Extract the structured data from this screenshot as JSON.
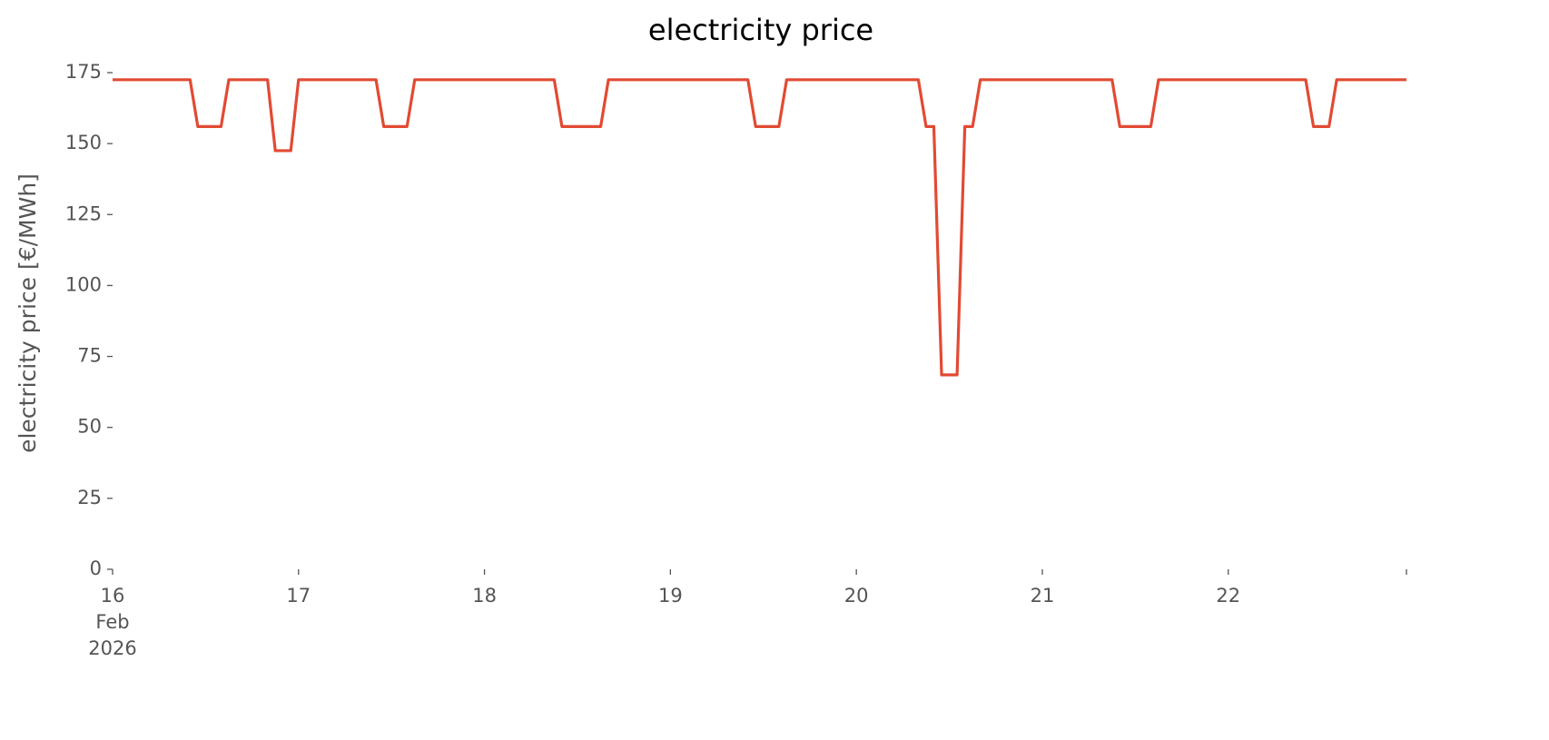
{
  "chart_data": {
    "type": "line",
    "title": "electricity price",
    "y_label": "electricity price [€/MWh]",
    "x": [
      "2026-02-16T00:00",
      "2026-02-16T10:00",
      "2026-02-16T11:00",
      "2026-02-16T14:00",
      "2026-02-16T15:00",
      "2026-02-16T20:00",
      "2026-02-16T21:00",
      "2026-02-16T23:00",
      "2026-02-17T00:00",
      "2026-02-17T10:00",
      "2026-02-17T11:00",
      "2026-02-17T14:00",
      "2026-02-17T15:00",
      "2026-02-18T09:00",
      "2026-02-18T10:00",
      "2026-02-18T15:00",
      "2026-02-18T16:00",
      "2026-02-19T10:00",
      "2026-02-19T11:00",
      "2026-02-19T14:00",
      "2026-02-19T15:00",
      "2026-02-20T08:00",
      "2026-02-20T09:00",
      "2026-02-20T10:00",
      "2026-02-20T11:00",
      "2026-02-20T13:00",
      "2026-02-20T14:00",
      "2026-02-20T15:00",
      "2026-02-20T16:00",
      "2026-02-21T09:00",
      "2026-02-21T10:00",
      "2026-02-21T14:00",
      "2026-02-21T15:00",
      "2026-02-22T10:00",
      "2026-02-22T11:00",
      "2026-02-22T13:00",
      "2026-02-22T14:00",
      "2026-02-22T23:00"
    ],
    "series": [
      {
        "name": "electricity price",
        "color": "#E24A33",
        "values": [
          172.5,
          172.5,
          156,
          156,
          172.5,
          172.5,
          147.5,
          147.5,
          172.5,
          172.5,
          156,
          156,
          172.5,
          172.5,
          156,
          156,
          172.5,
          172.5,
          156,
          156,
          172.5,
          172.5,
          156,
          156,
          68.5,
          68.5,
          156,
          156,
          172.5,
          172.5,
          156,
          156,
          172.5,
          172.5,
          156,
          156,
          172.5,
          172.5
        ]
      }
    ],
    "xlim": [
      "2026-02-16T00:00",
      "2026-02-22T23:00"
    ],
    "xticks": [
      {
        "value": "2026-02-16T00:00",
        "label": "16\nFeb\n2026"
      },
      {
        "value": "2026-02-17T00:00",
        "label": "17"
      },
      {
        "value": "2026-02-18T00:00",
        "label": "18"
      },
      {
        "value": "2026-02-19T00:00",
        "label": "19"
      },
      {
        "value": "2026-02-20T00:00",
        "label": "20"
      },
      {
        "value": "2026-02-21T00:00",
        "label": "21"
      },
      {
        "value": "2026-02-22T00:00",
        "label": "22"
      }
    ],
    "ylim": [
      0,
      175
    ],
    "yticks": [
      0,
      25,
      50,
      75,
      100,
      125,
      150,
      175
    ],
    "grid": false
  }
}
